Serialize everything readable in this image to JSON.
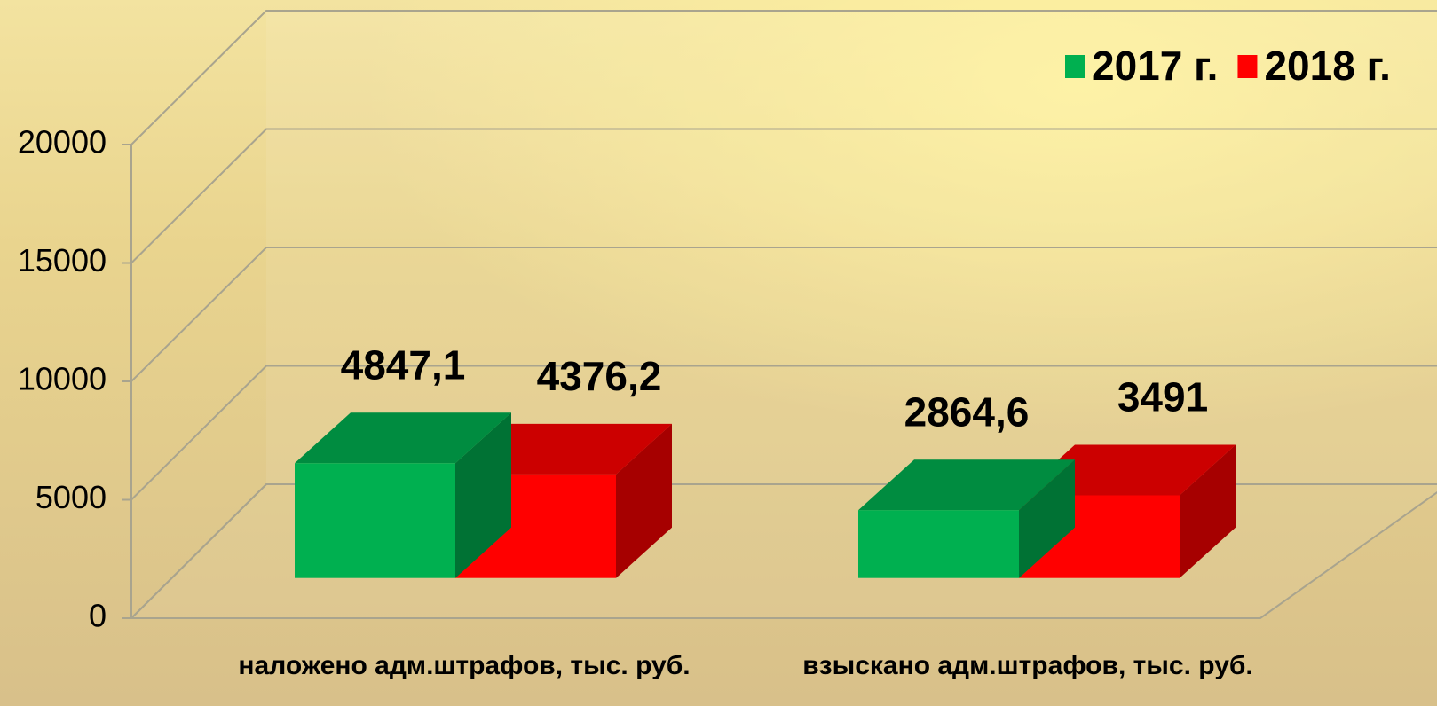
{
  "chart_data": {
    "type": "bar3d",
    "categories": [
      "наложено адм.штрафов, тыс. руб.",
      "взыскано адм.штрафов, тыс. руб."
    ],
    "series": [
      {
        "name": "2017 г.",
        "color": "#00b050",
        "values": [
          4847.1,
          2864.6
        ],
        "value_labels": [
          "4847,1",
          "2864,6"
        ]
      },
      {
        "name": "2018 г.",
        "color": "#ff0000",
        "values": [
          4376.2,
          3491
        ],
        "value_labels": [
          "4376,2",
          "3491"
        ]
      }
    ],
    "ylim": [
      0,
      20000
    ],
    "yticks": [
      0,
      5000,
      10000,
      15000,
      20000
    ],
    "grid": true,
    "legend": "top-right"
  }
}
